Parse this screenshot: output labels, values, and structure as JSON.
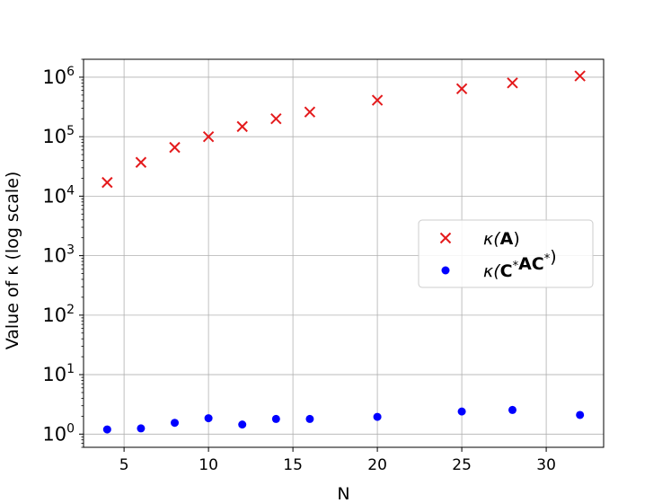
{
  "chart_data": {
    "type": "scatter",
    "title": "",
    "xlabel": "N",
    "ylabel": "Value of κ (log scale)",
    "xlim": [
      2.6,
      33.4
    ],
    "ylim": [
      0.6,
      2000000
    ],
    "yscale": "log",
    "grid": true,
    "legend_position": "center-right",
    "x_ticks": [
      5,
      10,
      15,
      20,
      25,
      30
    ],
    "x_tick_labels": [
      "5",
      "10",
      "15",
      "20",
      "25",
      "30"
    ],
    "y_ticks": [
      1,
      10,
      100,
      1000,
      10000,
      100000,
      1000000
    ],
    "y_tick_base": "10",
    "y_tick_exponents": [
      "0",
      "1",
      "2",
      "3",
      "4",
      "5",
      "6"
    ],
    "series": [
      {
        "name": "κ(A)",
        "legend_parts": [
          "κ(",
          "A",
          ")"
        ],
        "marker": "x",
        "color": "#e41a1c",
        "x": [
          4,
          6,
          8,
          10,
          12,
          14,
          16,
          20,
          25,
          28,
          32
        ],
        "y": [
          17000,
          37000,
          66000,
          100000,
          148000,
          200000,
          260000,
          410000,
          640000,
          800000,
          1050000
        ]
      },
      {
        "name": "κ(C*AC*)",
        "legend_parts": [
          "κ(",
          "C",
          "*",
          "AC",
          "*",
          ")"
        ],
        "marker": "o",
        "color": "#0000ff",
        "x": [
          4,
          6,
          8,
          10,
          12,
          14,
          16,
          20,
          25,
          28,
          32
        ],
        "y": [
          1.2,
          1.25,
          1.55,
          1.85,
          1.45,
          1.8,
          1.8,
          1.95,
          2.4,
          2.55,
          2.1
        ]
      }
    ]
  }
}
